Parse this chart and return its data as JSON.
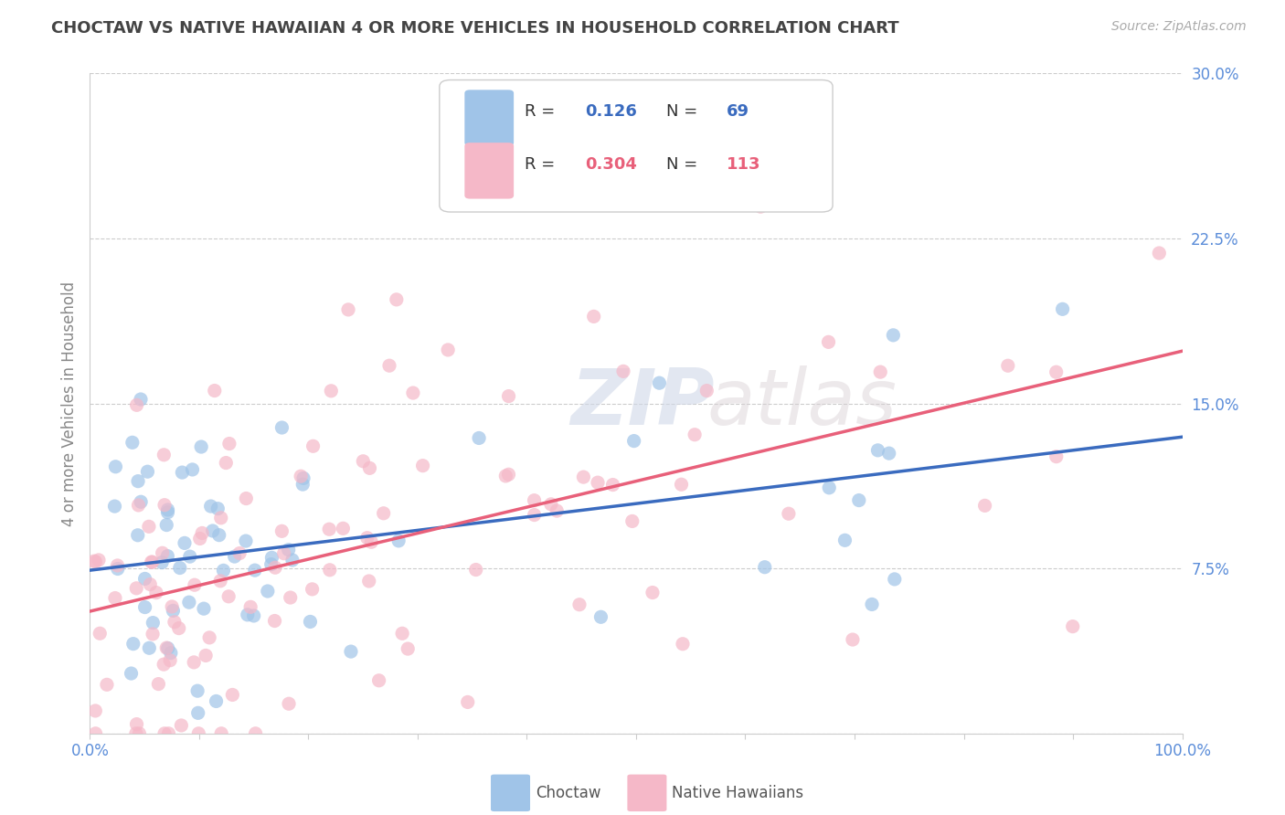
{
  "title": "CHOCTAW VS NATIVE HAWAIIAN 4 OR MORE VEHICLES IN HOUSEHOLD CORRELATION CHART",
  "source_text": "Source: ZipAtlas.com",
  "ylabel": "4 or more Vehicles in Household",
  "xlim": [
    0.0,
    1.0
  ],
  "ylim": [
    0.0,
    0.3
  ],
  "xticks": [
    0.0,
    0.1,
    0.2,
    0.3,
    0.4,
    0.5,
    0.6,
    0.7,
    0.8,
    0.9,
    1.0
  ],
  "xticklabels": [
    "0.0%",
    "",
    "",
    "",
    "",
    "",
    "",
    "",
    "",
    "",
    "100.0%"
  ],
  "yticks": [
    0.0,
    0.075,
    0.15,
    0.225,
    0.3
  ],
  "yticklabels": [
    "",
    "7.5%",
    "15.0%",
    "22.5%",
    "30.0%"
  ],
  "legend_labels": [
    "Choctaw",
    "Native Hawaiians"
  ],
  "choctaw_color": "#a0c4e8",
  "native_hawaiian_color": "#f5b8c8",
  "choctaw_line_color": "#3a6bbf",
  "native_hawaiian_line_color": "#e8607a",
  "R_choctaw": 0.126,
  "N_choctaw": 69,
  "R_native": 0.304,
  "N_native": 113,
  "background_color": "#ffffff",
  "grid_color": "#cccccc",
  "title_color": "#444444",
  "tick_color": "#5b8dd9",
  "axis_label_color": "#888888",
  "choctaw_seed": 42,
  "native_seed": 7
}
